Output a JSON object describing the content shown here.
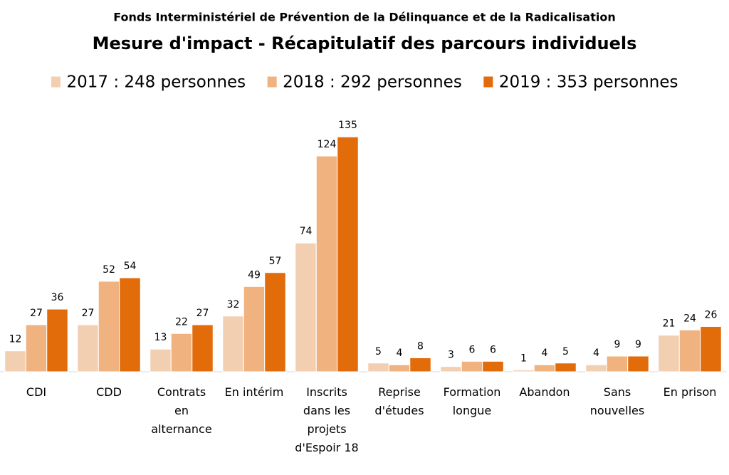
{
  "chart_data": {
    "type": "bar",
    "subtitle": "Fonds Interministériel de Prévention de la Délinquance et de la Radicalisation",
    "title": "Mesure d'impact - Récapitulatif des parcours individuels",
    "categories": [
      "CDI",
      "CDD",
      "Contrats\nen\nalternance",
      "En intérim",
      "Inscrits\ndans les\nprojets\nd'Espoir 18",
      "Reprise\nd'études",
      "Formation\nlongue",
      "Abandon",
      "Sans\nnouvelles",
      "En prison"
    ],
    "series": [
      {
        "name": "2017 : 248 personnes",
        "color": "#f3cfb2",
        "values": [
          12,
          27,
          13,
          32,
          74,
          5,
          3,
          1,
          4,
          21
        ]
      },
      {
        "name": "2018 : 292 personnes",
        "color": "#f0b27e",
        "values": [
          27,
          52,
          22,
          49,
          124,
          4,
          6,
          4,
          9,
          24
        ]
      },
      {
        "name": "2019 : 353 personnes",
        "color": "#e26b0a",
        "values": [
          36,
          54,
          27,
          57,
          135,
          8,
          6,
          5,
          9,
          26
        ]
      }
    ],
    "ylim": [
      0,
      140
    ],
    "legend": "top"
  }
}
